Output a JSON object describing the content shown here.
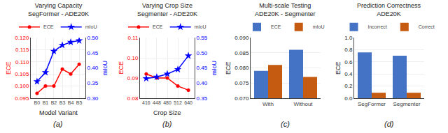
{
  "chart_data": [
    {
      "type": "line",
      "title": "Varying Capacity\nSegFormer - ADE20K",
      "xlabel": "Model Variant",
      "ylabel": "ECE",
      "y2label": "mIoU",
      "annotations": [
        "(a)"
      ],
      "categories": [
        "B0",
        "B1",
        "B2",
        "B3",
        "B4",
        "B5"
      ],
      "series": [
        {
          "name": "ECE",
          "color": "#FF0000",
          "marker": "circle",
          "values": [
            0.097,
            0.1,
            0.1,
            0.107,
            0.105,
            0.109
          ]
        },
        {
          "name": "mIoU",
          "color": "#0000FF",
          "marker": "star",
          "axis": "y2",
          "values": [
            0.355,
            0.385,
            0.455,
            0.475,
            0.485,
            0.49
          ]
        }
      ],
      "ylim": [
        0.095,
        0.12
      ],
      "yticks": [
        0.095,
        {
          "value": 0.1,
          "label": "0.100"
        },
        0.105,
        {
          "value": 0.11,
          "label": "0.110"
        },
        0.115,
        {
          "value": 0.12,
          "label": "0.120"
        }
      ],
      "y2lim": [
        0.3,
        0.5
      ],
      "y2ticks": [
        {
          "value": 0.3,
          "label": "0.30"
        },
        0.35,
        {
          "value": 0.4,
          "label": "0.40"
        },
        0.45,
        {
          "value": 0.5,
          "label": "0.50"
        }
      ],
      "grid": true,
      "legend": "top"
    },
    {
      "type": "line",
      "title": "Varying Crop Size\nSegmenter - ADE20K",
      "xlabel": "Crop Size",
      "ylabel": "ECE",
      "y2label": "mIoU",
      "annotations": [
        "(b)"
      ],
      "categories": [
        "416",
        "448",
        "480",
        "512",
        "640"
      ],
      "series": [
        {
          "name": "ECE",
          "color": "#FF0000",
          "marker": "circle",
          "values": [
            0.092,
            0.09,
            0.09,
            0.086,
            0.084
          ]
        },
        {
          "name": "mIoU",
          "color": "#0000FF",
          "marker": "star",
          "axis": "y2",
          "values": [
            0.415,
            0.42,
            0.43,
            0.445,
            0.49
          ]
        }
      ],
      "ylim": [
        0.08,
        0.11
      ],
      "yticks": [
        0.08,
        0.09,
        {
          "value": 0.1,
          "label": "0.10"
        },
        0.11
      ],
      "y2lim": [
        0.35,
        0.55
      ],
      "y2ticks": [
        0.35,
        {
          "value": 0.4,
          "label": "0.40"
        },
        0.45,
        {
          "value": 0.5,
          "label": "0.50"
        },
        0.55
      ],
      "grid": true,
      "legend": "top"
    },
    {
      "type": "bar",
      "title": "Multi-scale Testing\nADE20K - Segmenter",
      "ylabel": "ECE",
      "annotations": [
        "(c)"
      ],
      "categories": [
        "With",
        "Without"
      ],
      "series": [
        {
          "name": "ECE",
          "color": "#4472C4",
          "values": [
            0.079,
            0.086
          ]
        },
        {
          "name": "mIoU",
          "color": "#C55A11",
          "values": [
            0.081,
            0.077
          ]
        }
      ],
      "ylim": [
        0.07,
        0.09
      ],
      "yticks": [
        {
          "value": 0.07,
          "label": "0.070"
        },
        0.075,
        {
          "value": 0.08,
          "label": "0.080"
        },
        0.085,
        {
          "value": 0.09,
          "label": "0.090"
        }
      ],
      "grid": "y",
      "legend": "top"
    },
    {
      "type": "bar",
      "title": "Prediction Correctness\nADE20K",
      "ylabel": "ECE",
      "annotations": [
        "(d)"
      ],
      "categories": [
        "SegFormer",
        "Segmenter"
      ],
      "series": [
        {
          "name": "Incorrect",
          "color": "#4472C4",
          "values": [
            0.755,
            0.7
          ]
        },
        {
          "name": "Correct",
          "color": "#C55A11",
          "values": [
            0.09,
            0.09
          ]
        }
      ],
      "ylim": [
        0.0,
        1.0
      ],
      "yticks": [
        {
          "value": 0,
          "label": "0.0"
        },
        0.2,
        0.4,
        0.6,
        0.8,
        {
          "value": 1,
          "label": "1.0"
        }
      ],
      "grid": "y",
      "legend": "top"
    }
  ]
}
